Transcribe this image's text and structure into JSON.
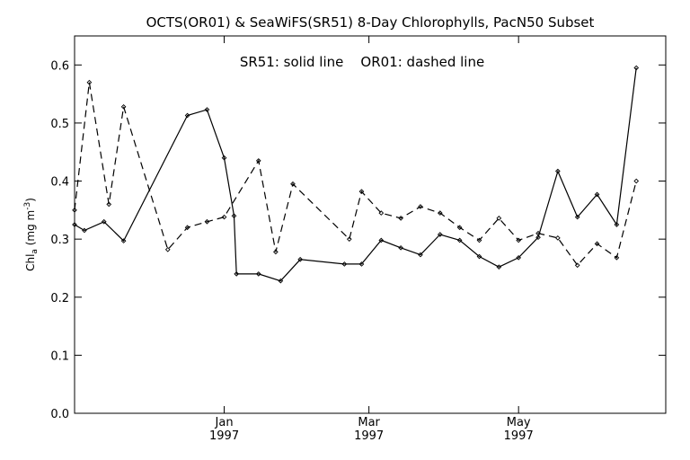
{
  "chart_data": {
    "type": "line",
    "title": "OCTS(OR01) & SeaWiFS(SR51) 8-Day Chlorophylls, PacN50 Subset",
    "annotation": "SR51: solid line    OR01: dashed line",
    "ylabel": {
      "base": "Chl",
      "sub": "a",
      "unit_open": " (mg m",
      "unit_sup": "-3",
      "unit_close": ")"
    },
    "ylim": [
      0.0,
      0.65
    ],
    "yticks": [
      "0.0",
      "0.1",
      "0.2",
      "0.3",
      "0.4",
      "0.5",
      "0.6"
    ],
    "xlim": [
      "1996-11-01",
      "1997-06-30"
    ],
    "xticks": [
      {
        "date": "1997-01-01",
        "month": "Jan",
        "year": "1997"
      },
      {
        "date": "1997-03-01",
        "month": "Mar",
        "year": "1997"
      },
      {
        "date": "1997-05-01",
        "month": "May",
        "year": "1997"
      }
    ],
    "series": [
      {
        "name": "SR51",
        "style": "solid",
        "points": [
          [
            "1996-11-01",
            0.325
          ],
          [
            "1996-11-05",
            0.315
          ],
          [
            "1996-11-13",
            0.33
          ],
          [
            "1996-11-21",
            0.297
          ],
          [
            "1996-12-17",
            0.513
          ],
          [
            "1996-12-25",
            0.523
          ],
          [
            "1997-01-01",
            0.44
          ],
          [
            "1997-01-05",
            0.34
          ],
          [
            "1997-01-06",
            0.24
          ],
          [
            "1997-01-15",
            0.24
          ],
          [
            "1997-01-24",
            0.228
          ],
          [
            "1997-02-01",
            0.265
          ],
          [
            "1997-02-19",
            0.257
          ],
          [
            "1997-02-26",
            0.257
          ],
          [
            "1997-03-06",
            0.298
          ],
          [
            "1997-03-14",
            0.285
          ],
          [
            "1997-03-22",
            0.273
          ],
          [
            "1997-03-30",
            0.308
          ],
          [
            "1997-04-07",
            0.298
          ],
          [
            "1997-04-15",
            0.27
          ],
          [
            "1997-04-23",
            0.252
          ],
          [
            "1997-05-01",
            0.268
          ],
          [
            "1997-05-09",
            0.303
          ],
          [
            "1997-05-17",
            0.417
          ],
          [
            "1997-05-25",
            0.338
          ],
          [
            "1997-06-02",
            0.377
          ],
          [
            "1997-06-10",
            0.325
          ],
          [
            "1997-06-18",
            0.595
          ]
        ]
      },
      {
        "name": "OR01",
        "style": "dashed",
        "points": [
          [
            "1996-11-01",
            0.35
          ],
          [
            "1996-11-07",
            0.57
          ],
          [
            "1996-11-15",
            0.36
          ],
          [
            "1996-11-21",
            0.528
          ],
          [
            "1996-12-09",
            0.282
          ],
          [
            "1996-12-17",
            0.32
          ],
          [
            "1996-12-25",
            0.33
          ],
          [
            "1997-01-01",
            0.338
          ],
          [
            "1997-01-15",
            0.435
          ],
          [
            "1997-01-22",
            0.278
          ],
          [
            "1997-01-29",
            0.395
          ],
          [
            "1997-02-21",
            0.3
          ],
          [
            "1997-02-26",
            0.382
          ],
          [
            "1997-03-06",
            0.345
          ],
          [
            "1997-03-14",
            0.336
          ],
          [
            "1997-03-22",
            0.356
          ],
          [
            "1997-03-30",
            0.345
          ],
          [
            "1997-04-07",
            0.32
          ],
          [
            "1997-04-15",
            0.298
          ],
          [
            "1997-04-23",
            0.336
          ],
          [
            "1997-05-01",
            0.298
          ],
          [
            "1997-05-09",
            0.31
          ],
          [
            "1997-05-17",
            0.302
          ],
          [
            "1997-05-25",
            0.255
          ],
          [
            "1997-06-02",
            0.292
          ],
          [
            "1997-06-10",
            0.268
          ],
          [
            "1997-06-18",
            0.4
          ]
        ]
      }
    ],
    "grid": false,
    "legend": "none"
  }
}
